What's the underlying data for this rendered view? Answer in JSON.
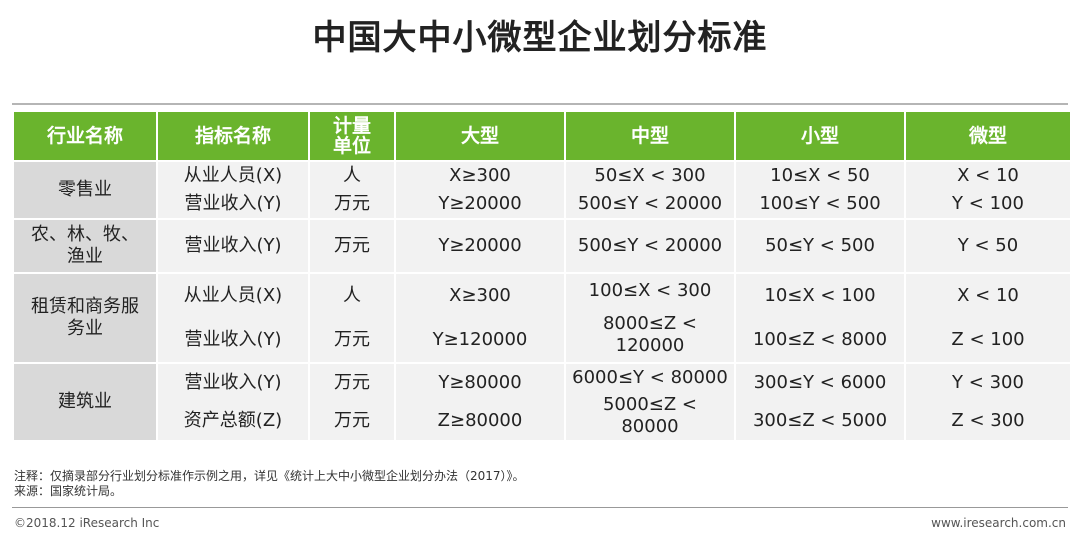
{
  "title": "中国大中小微型企业划分标准",
  "colors": {
    "header_green": "#6ab42d",
    "row_gray": "#f2f2f2",
    "industry_gray": "#d9d9d9"
  },
  "table": {
    "headers": [
      "行业名称",
      "指标名称",
      "计量单位",
      "大型",
      "中型",
      "小型",
      "微型"
    ],
    "unit_header_lines": [
      "计量",
      "单位"
    ],
    "rows": [
      {
        "industry": "零售业",
        "indicators": [
          {
            "name": "从业人员(X)",
            "unit": "人",
            "large": "X≥300",
            "medium": "50≤X < 300",
            "small": "10≤X < 50",
            "micro": "X < 10"
          },
          {
            "name": "营业收入(Y)",
            "unit": "万元",
            "large": "Y≥20000",
            "medium": "500≤Y < 20000",
            "small": "100≤Y < 500",
            "micro": "Y < 100"
          }
        ]
      },
      {
        "industry_lines": [
          "农、林、牧、",
          "渔业"
        ],
        "indicators": [
          {
            "name": "营业收入(Y)",
            "unit": "万元",
            "large": "Y≥20000",
            "medium": "500≤Y < 20000",
            "small": "50≤Y < 500",
            "micro": "Y < 50"
          }
        ]
      },
      {
        "industry_lines": [
          "租赁和商务服",
          "务业"
        ],
        "indicators": [
          {
            "name": "从业人员(X)",
            "unit": "人",
            "large": "X≥300",
            "medium": "100≤X < 300",
            "small": "10≤X < 100",
            "micro": "X < 10"
          },
          {
            "name": "营业收入(Y)",
            "unit": "万元",
            "large": "Y≥120000",
            "medium_lines": [
              "8000≤Z <",
              "120000"
            ],
            "small": "100≤Z < 8000",
            "micro": "Z < 100"
          }
        ]
      },
      {
        "industry": "建筑业",
        "indicators": [
          {
            "name": "营业收入(Y)",
            "unit": "万元",
            "large": "Y≥80000",
            "medium": "6000≤Y < 80000",
            "small": "300≤Y < 6000",
            "micro": "Y < 300"
          },
          {
            "name": "资产总额(Z)",
            "unit": "万元",
            "large": "Z≥80000",
            "medium_lines": [
              "5000≤Z <",
              "80000"
            ],
            "small": "300≤Z < 5000",
            "micro": "Z < 300"
          }
        ]
      }
    ]
  },
  "notes": {
    "note": "注释：仅摘录部分行业划分标准作示例之用，详见《统计上大中小微型企业划分办法（2017）》。",
    "source": "来源：国家统计局。"
  },
  "footer": {
    "copyright": "©2018.12 iResearch Inc",
    "website": "www.iresearch.com.cn"
  }
}
